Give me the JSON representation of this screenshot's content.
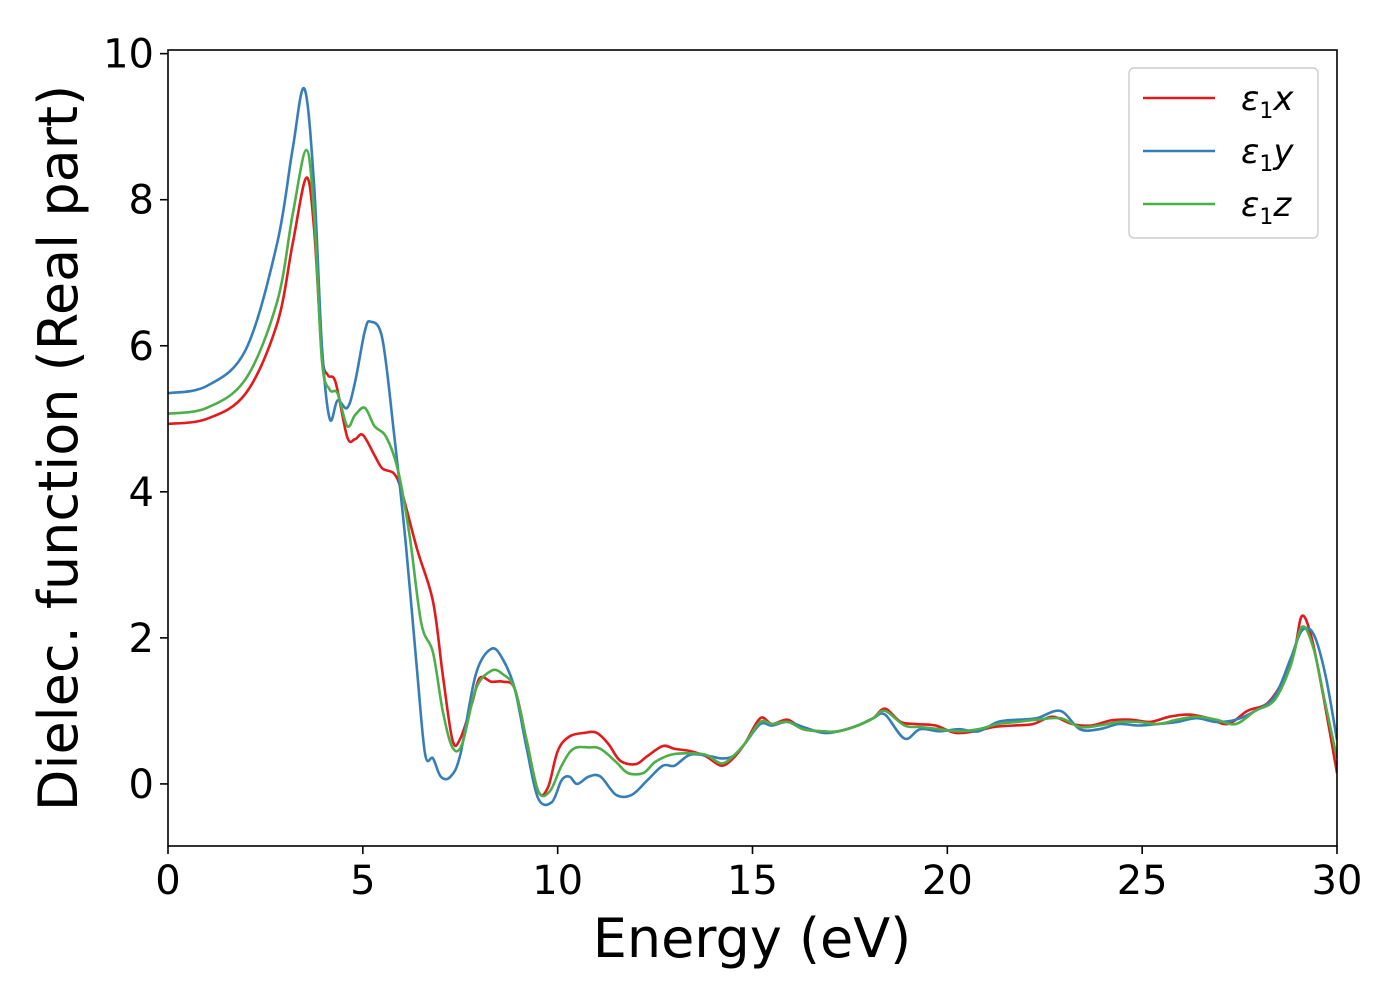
{
  "chart_data": {
    "type": "line",
    "xlabel": "Energy (eV)",
    "ylabel": "Dielec. function (Real part)",
    "xlim": [
      0,
      30
    ],
    "ylim": [
      -0.85,
      10.05
    ],
    "xticks": [
      0,
      5,
      10,
      15,
      20,
      25,
      30
    ],
    "yticks": [
      0,
      2,
      4,
      6,
      8,
      10
    ],
    "grid": false,
    "legend_position": "top-right",
    "series": [
      {
        "name": "ε1x",
        "legend": {
          "base": "ε",
          "sub": "1",
          "tail": "x"
        },
        "color": "#e31a1c",
        "points": [
          [
            0,
            4.93
          ],
          [
            1,
            5.0
          ],
          [
            2,
            5.35
          ],
          [
            2.8,
            6.3
          ],
          [
            3.2,
            7.4
          ],
          [
            3.55,
            8.3
          ],
          [
            3.75,
            7.6
          ],
          [
            3.95,
            5.9
          ],
          [
            4.1,
            5.6
          ],
          [
            4.3,
            5.5
          ],
          [
            4.6,
            4.75
          ],
          [
            4.8,
            4.72
          ],
          [
            5.0,
            4.78
          ],
          [
            5.3,
            4.5
          ],
          [
            5.5,
            4.32
          ],
          [
            5.8,
            4.25
          ],
          [
            6.0,
            4.0
          ],
          [
            6.4,
            3.2
          ],
          [
            6.8,
            2.5
          ],
          [
            7.05,
            1.5
          ],
          [
            7.3,
            0.6
          ],
          [
            7.5,
            0.62
          ],
          [
            7.8,
            1.1
          ],
          [
            8.0,
            1.45
          ],
          [
            8.3,
            1.4
          ],
          [
            8.6,
            1.4
          ],
          [
            8.9,
            1.3
          ],
          [
            9.2,
            0.6
          ],
          [
            9.5,
            -0.1
          ],
          [
            9.75,
            -0.05
          ],
          [
            10.0,
            0.45
          ],
          [
            10.3,
            0.65
          ],
          [
            10.7,
            0.7
          ],
          [
            11.0,
            0.7
          ],
          [
            11.3,
            0.55
          ],
          [
            11.6,
            0.32
          ],
          [
            12.0,
            0.27
          ],
          [
            12.3,
            0.38
          ],
          [
            12.7,
            0.52
          ],
          [
            13.0,
            0.48
          ],
          [
            13.4,
            0.45
          ],
          [
            13.8,
            0.38
          ],
          [
            14.2,
            0.25
          ],
          [
            14.5,
            0.35
          ],
          [
            14.8,
            0.55
          ],
          [
            15.2,
            0.9
          ],
          [
            15.5,
            0.82
          ],
          [
            15.9,
            0.88
          ],
          [
            16.3,
            0.75
          ],
          [
            16.8,
            0.72
          ],
          [
            17.2,
            0.72
          ],
          [
            17.7,
            0.8
          ],
          [
            18.1,
            0.9
          ],
          [
            18.4,
            1.03
          ],
          [
            18.8,
            0.85
          ],
          [
            19.2,
            0.82
          ],
          [
            19.7,
            0.8
          ],
          [
            20.2,
            0.7
          ],
          [
            20.7,
            0.72
          ],
          [
            21.2,
            0.78
          ],
          [
            21.7,
            0.8
          ],
          [
            22.2,
            0.82
          ],
          [
            22.7,
            0.92
          ],
          [
            23.2,
            0.82
          ],
          [
            23.7,
            0.8
          ],
          [
            24.2,
            0.87
          ],
          [
            24.7,
            0.88
          ],
          [
            25.2,
            0.85
          ],
          [
            25.7,
            0.92
          ],
          [
            26.2,
            0.95
          ],
          [
            26.7,
            0.9
          ],
          [
            27.2,
            0.82
          ],
          [
            27.7,
            1.0
          ],
          [
            28.2,
            1.1
          ],
          [
            28.6,
            1.4
          ],
          [
            28.9,
            1.8
          ],
          [
            29.1,
            2.3
          ],
          [
            29.35,
            2.0
          ],
          [
            29.65,
            1.2
          ],
          [
            30,
            0.15
          ]
        ]
      },
      {
        "name": "ε1y",
        "legend": {
          "base": "ε",
          "sub": "1",
          "tail": "y"
        },
        "color": "#377eb8",
        "points": [
          [
            0,
            5.35
          ],
          [
            1,
            5.45
          ],
          [
            2,
            5.95
          ],
          [
            2.8,
            7.4
          ],
          [
            3.2,
            8.7
          ],
          [
            3.5,
            9.52
          ],
          [
            3.75,
            8.2
          ],
          [
            3.95,
            6.0
          ],
          [
            4.15,
            5.0
          ],
          [
            4.35,
            5.25
          ],
          [
            4.6,
            5.15
          ],
          [
            4.8,
            5.5
          ],
          [
            5.05,
            6.2
          ],
          [
            5.2,
            6.33
          ],
          [
            5.5,
            6.1
          ],
          [
            5.8,
            4.8
          ],
          [
            6.1,
            3.3
          ],
          [
            6.4,
            1.5
          ],
          [
            6.6,
            0.4
          ],
          [
            6.8,
            0.35
          ],
          [
            7.0,
            0.1
          ],
          [
            7.25,
            0.1
          ],
          [
            7.5,
            0.4
          ],
          [
            7.9,
            1.5
          ],
          [
            8.3,
            1.85
          ],
          [
            8.6,
            1.7
          ],
          [
            8.9,
            1.3
          ],
          [
            9.2,
            0.5
          ],
          [
            9.5,
            -0.2
          ],
          [
            9.85,
            -0.25
          ],
          [
            10.1,
            0.05
          ],
          [
            10.3,
            0.1
          ],
          [
            10.5,
            0.0
          ],
          [
            10.8,
            0.1
          ],
          [
            11.1,
            0.1
          ],
          [
            11.5,
            -0.15
          ],
          [
            11.9,
            -0.15
          ],
          [
            12.3,
            0.05
          ],
          [
            12.7,
            0.25
          ],
          [
            13.0,
            0.25
          ],
          [
            13.4,
            0.4
          ],
          [
            13.9,
            0.38
          ],
          [
            14.2,
            0.35
          ],
          [
            14.5,
            0.38
          ],
          [
            14.8,
            0.55
          ],
          [
            15.2,
            0.82
          ],
          [
            15.5,
            0.8
          ],
          [
            15.9,
            0.85
          ],
          [
            16.3,
            0.78
          ],
          [
            16.8,
            0.7
          ],
          [
            17.2,
            0.72
          ],
          [
            17.7,
            0.8
          ],
          [
            18.1,
            0.9
          ],
          [
            18.4,
            0.95
          ],
          [
            18.9,
            0.62
          ],
          [
            19.3,
            0.75
          ],
          [
            19.8,
            0.72
          ],
          [
            20.3,
            0.75
          ],
          [
            20.8,
            0.72
          ],
          [
            21.3,
            0.85
          ],
          [
            21.8,
            0.88
          ],
          [
            22.3,
            0.9
          ],
          [
            22.9,
            1.0
          ],
          [
            23.4,
            0.75
          ],
          [
            23.9,
            0.75
          ],
          [
            24.4,
            0.82
          ],
          [
            24.9,
            0.8
          ],
          [
            25.4,
            0.82
          ],
          [
            25.9,
            0.85
          ],
          [
            26.4,
            0.9
          ],
          [
            26.9,
            0.85
          ],
          [
            27.4,
            0.88
          ],
          [
            27.9,
            1.0
          ],
          [
            28.4,
            1.2
          ],
          [
            28.8,
            1.7
          ],
          [
            29.1,
            2.1
          ],
          [
            29.4,
            2.05
          ],
          [
            29.7,
            1.5
          ],
          [
            30,
            0.6
          ]
        ]
      },
      {
        "name": "ε1z",
        "legend": {
          "base": "ε",
          "sub": "1",
          "tail": "z"
        },
        "color": "#4daf4a",
        "points": [
          [
            0,
            5.07
          ],
          [
            1,
            5.15
          ],
          [
            2,
            5.55
          ],
          [
            2.8,
            6.6
          ],
          [
            3.2,
            7.8
          ],
          [
            3.55,
            8.68
          ],
          [
            3.75,
            7.8
          ],
          [
            3.95,
            5.8
          ],
          [
            4.15,
            5.4
          ],
          [
            4.35,
            5.35
          ],
          [
            4.6,
            4.9
          ],
          [
            4.8,
            5.05
          ],
          [
            5.05,
            5.15
          ],
          [
            5.3,
            4.9
          ],
          [
            5.6,
            4.75
          ],
          [
            5.9,
            4.3
          ],
          [
            6.2,
            3.4
          ],
          [
            6.5,
            2.2
          ],
          [
            6.8,
            1.8
          ],
          [
            7.05,
            1.0
          ],
          [
            7.3,
            0.5
          ],
          [
            7.55,
            0.55
          ],
          [
            7.9,
            1.3
          ],
          [
            8.3,
            1.55
          ],
          [
            8.6,
            1.5
          ],
          [
            8.9,
            1.3
          ],
          [
            9.2,
            0.6
          ],
          [
            9.5,
            -0.1
          ],
          [
            9.8,
            -0.1
          ],
          [
            10.1,
            0.25
          ],
          [
            10.4,
            0.48
          ],
          [
            10.8,
            0.5
          ],
          [
            11.1,
            0.48
          ],
          [
            11.5,
            0.3
          ],
          [
            11.8,
            0.15
          ],
          [
            12.2,
            0.15
          ],
          [
            12.5,
            0.3
          ],
          [
            12.9,
            0.4
          ],
          [
            13.3,
            0.42
          ],
          [
            13.8,
            0.4
          ],
          [
            14.2,
            0.28
          ],
          [
            14.5,
            0.38
          ],
          [
            14.8,
            0.55
          ],
          [
            15.2,
            0.85
          ],
          [
            15.5,
            0.82
          ],
          [
            15.9,
            0.85
          ],
          [
            16.3,
            0.75
          ],
          [
            16.8,
            0.72
          ],
          [
            17.2,
            0.72
          ],
          [
            17.7,
            0.8
          ],
          [
            18.1,
            0.9
          ],
          [
            18.4,
            1.0
          ],
          [
            18.9,
            0.8
          ],
          [
            19.3,
            0.78
          ],
          [
            19.8,
            0.75
          ],
          [
            20.3,
            0.72
          ],
          [
            20.8,
            0.75
          ],
          [
            21.3,
            0.82
          ],
          [
            21.8,
            0.85
          ],
          [
            22.3,
            0.88
          ],
          [
            22.9,
            0.9
          ],
          [
            23.4,
            0.78
          ],
          [
            23.9,
            0.8
          ],
          [
            24.4,
            0.85
          ],
          [
            24.9,
            0.85
          ],
          [
            25.4,
            0.82
          ],
          [
            25.9,
            0.88
          ],
          [
            26.4,
            0.92
          ],
          [
            26.9,
            0.88
          ],
          [
            27.4,
            0.82
          ],
          [
            27.9,
            1.0
          ],
          [
            28.4,
            1.15
          ],
          [
            28.8,
            1.6
          ],
          [
            29.1,
            2.15
          ],
          [
            29.4,
            1.85
          ],
          [
            29.7,
            1.1
          ],
          [
            30,
            0.35
          ]
        ]
      }
    ]
  }
}
